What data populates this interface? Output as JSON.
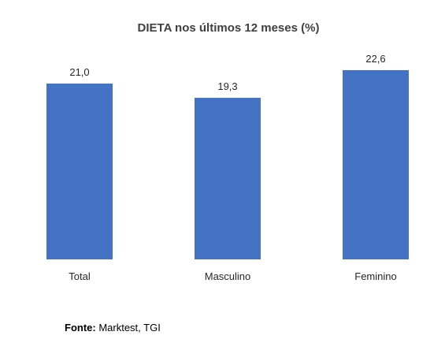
{
  "chart_data": {
    "type": "bar",
    "title": "DIETA nos últimos 12 meses (%)",
    "categories": [
      "Total",
      "Masculino",
      "Feminino"
    ],
    "values": [
      21.0,
      19.3,
      22.6
    ],
    "data_labels": [
      "21,0",
      "19,3",
      "22,6"
    ],
    "xlabel": "",
    "ylabel": "",
    "ylim": [
      0,
      22.6
    ],
    "grid": false,
    "legend": "none",
    "bar_color": "#4472C4"
  },
  "source": {
    "label": "Fonte:",
    "text": " Marktest, TGI"
  }
}
